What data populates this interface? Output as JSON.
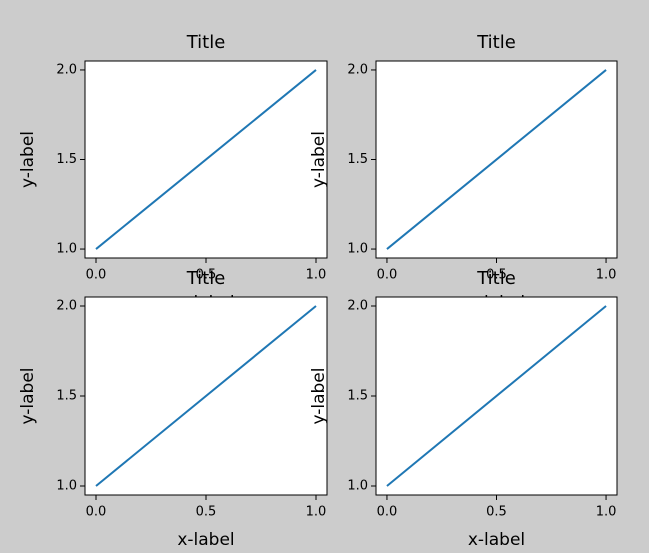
{
  "chart_data": [
    {
      "type": "line",
      "title": "Title",
      "xlabel": "x-label",
      "ylabel": "y-label",
      "x": [
        0,
        1
      ],
      "series": [
        {
          "color": "#1f77b4",
          "values": [
            1,
            2
          ]
        }
      ],
      "xlim": [
        -0.05,
        1.05
      ],
      "ylim": [
        0.95,
        2.05
      ],
      "xticks": [
        {
          "value": 0,
          "label": "0.0"
        },
        {
          "value": 0.5,
          "label": "0.5"
        },
        {
          "value": 1,
          "label": "1.0"
        }
      ],
      "yticks": [
        {
          "value": 1,
          "label": "1.0"
        },
        {
          "value": 1.5,
          "label": "1.5"
        },
        {
          "value": 2,
          "label": "2.0"
        }
      ]
    },
    {
      "type": "line",
      "title": "Title",
      "xlabel": "x-label",
      "ylabel": "y-label",
      "x": [
        0,
        1
      ],
      "series": [
        {
          "color": "#1f77b4",
          "values": [
            1,
            2
          ]
        }
      ],
      "xlim": [
        -0.05,
        1.05
      ],
      "ylim": [
        0.95,
        2.05
      ],
      "xticks": [
        {
          "value": 0,
          "label": "0.0"
        },
        {
          "value": 0.5,
          "label": "0.5"
        },
        {
          "value": 1,
          "label": "1.0"
        }
      ],
      "yticks": [
        {
          "value": 1,
          "label": "1.0"
        },
        {
          "value": 1.5,
          "label": "1.5"
        },
        {
          "value": 2,
          "label": "2.0"
        }
      ]
    },
    {
      "type": "line",
      "title": "Title",
      "xlabel": "x-label",
      "ylabel": "y-label",
      "x": [
        0,
        1
      ],
      "series": [
        {
          "color": "#1f77b4",
          "values": [
            1,
            2
          ]
        }
      ],
      "xlim": [
        -0.05,
        1.05
      ],
      "ylim": [
        0.95,
        2.05
      ],
      "xticks": [
        {
          "value": 0,
          "label": "0.0"
        },
        {
          "value": 0.5,
          "label": "0.5"
        },
        {
          "value": 1,
          "label": "1.0"
        }
      ],
      "yticks": [
        {
          "value": 1,
          "label": "1.0"
        },
        {
          "value": 1.5,
          "label": "1.5"
        },
        {
          "value": 2,
          "label": "2.0"
        }
      ]
    },
    {
      "type": "line",
      "title": "Title",
      "xlabel": "x-label",
      "ylabel": "y-label",
      "x": [
        0,
        1
      ],
      "series": [
        {
          "color": "#1f77b4",
          "values": [
            1,
            2
          ]
        }
      ],
      "xlim": [
        -0.05,
        1.05
      ],
      "ylim": [
        0.95,
        2.05
      ],
      "xticks": [
        {
          "value": 0,
          "label": "0.0"
        },
        {
          "value": 0.5,
          "label": "0.5"
        },
        {
          "value": 1,
          "label": "1.0"
        }
      ],
      "yticks": [
        {
          "value": 1,
          "label": "1.0"
        },
        {
          "value": 1.5,
          "label": "1.5"
        },
        {
          "value": 2,
          "label": "2.0"
        }
      ]
    }
  ]
}
